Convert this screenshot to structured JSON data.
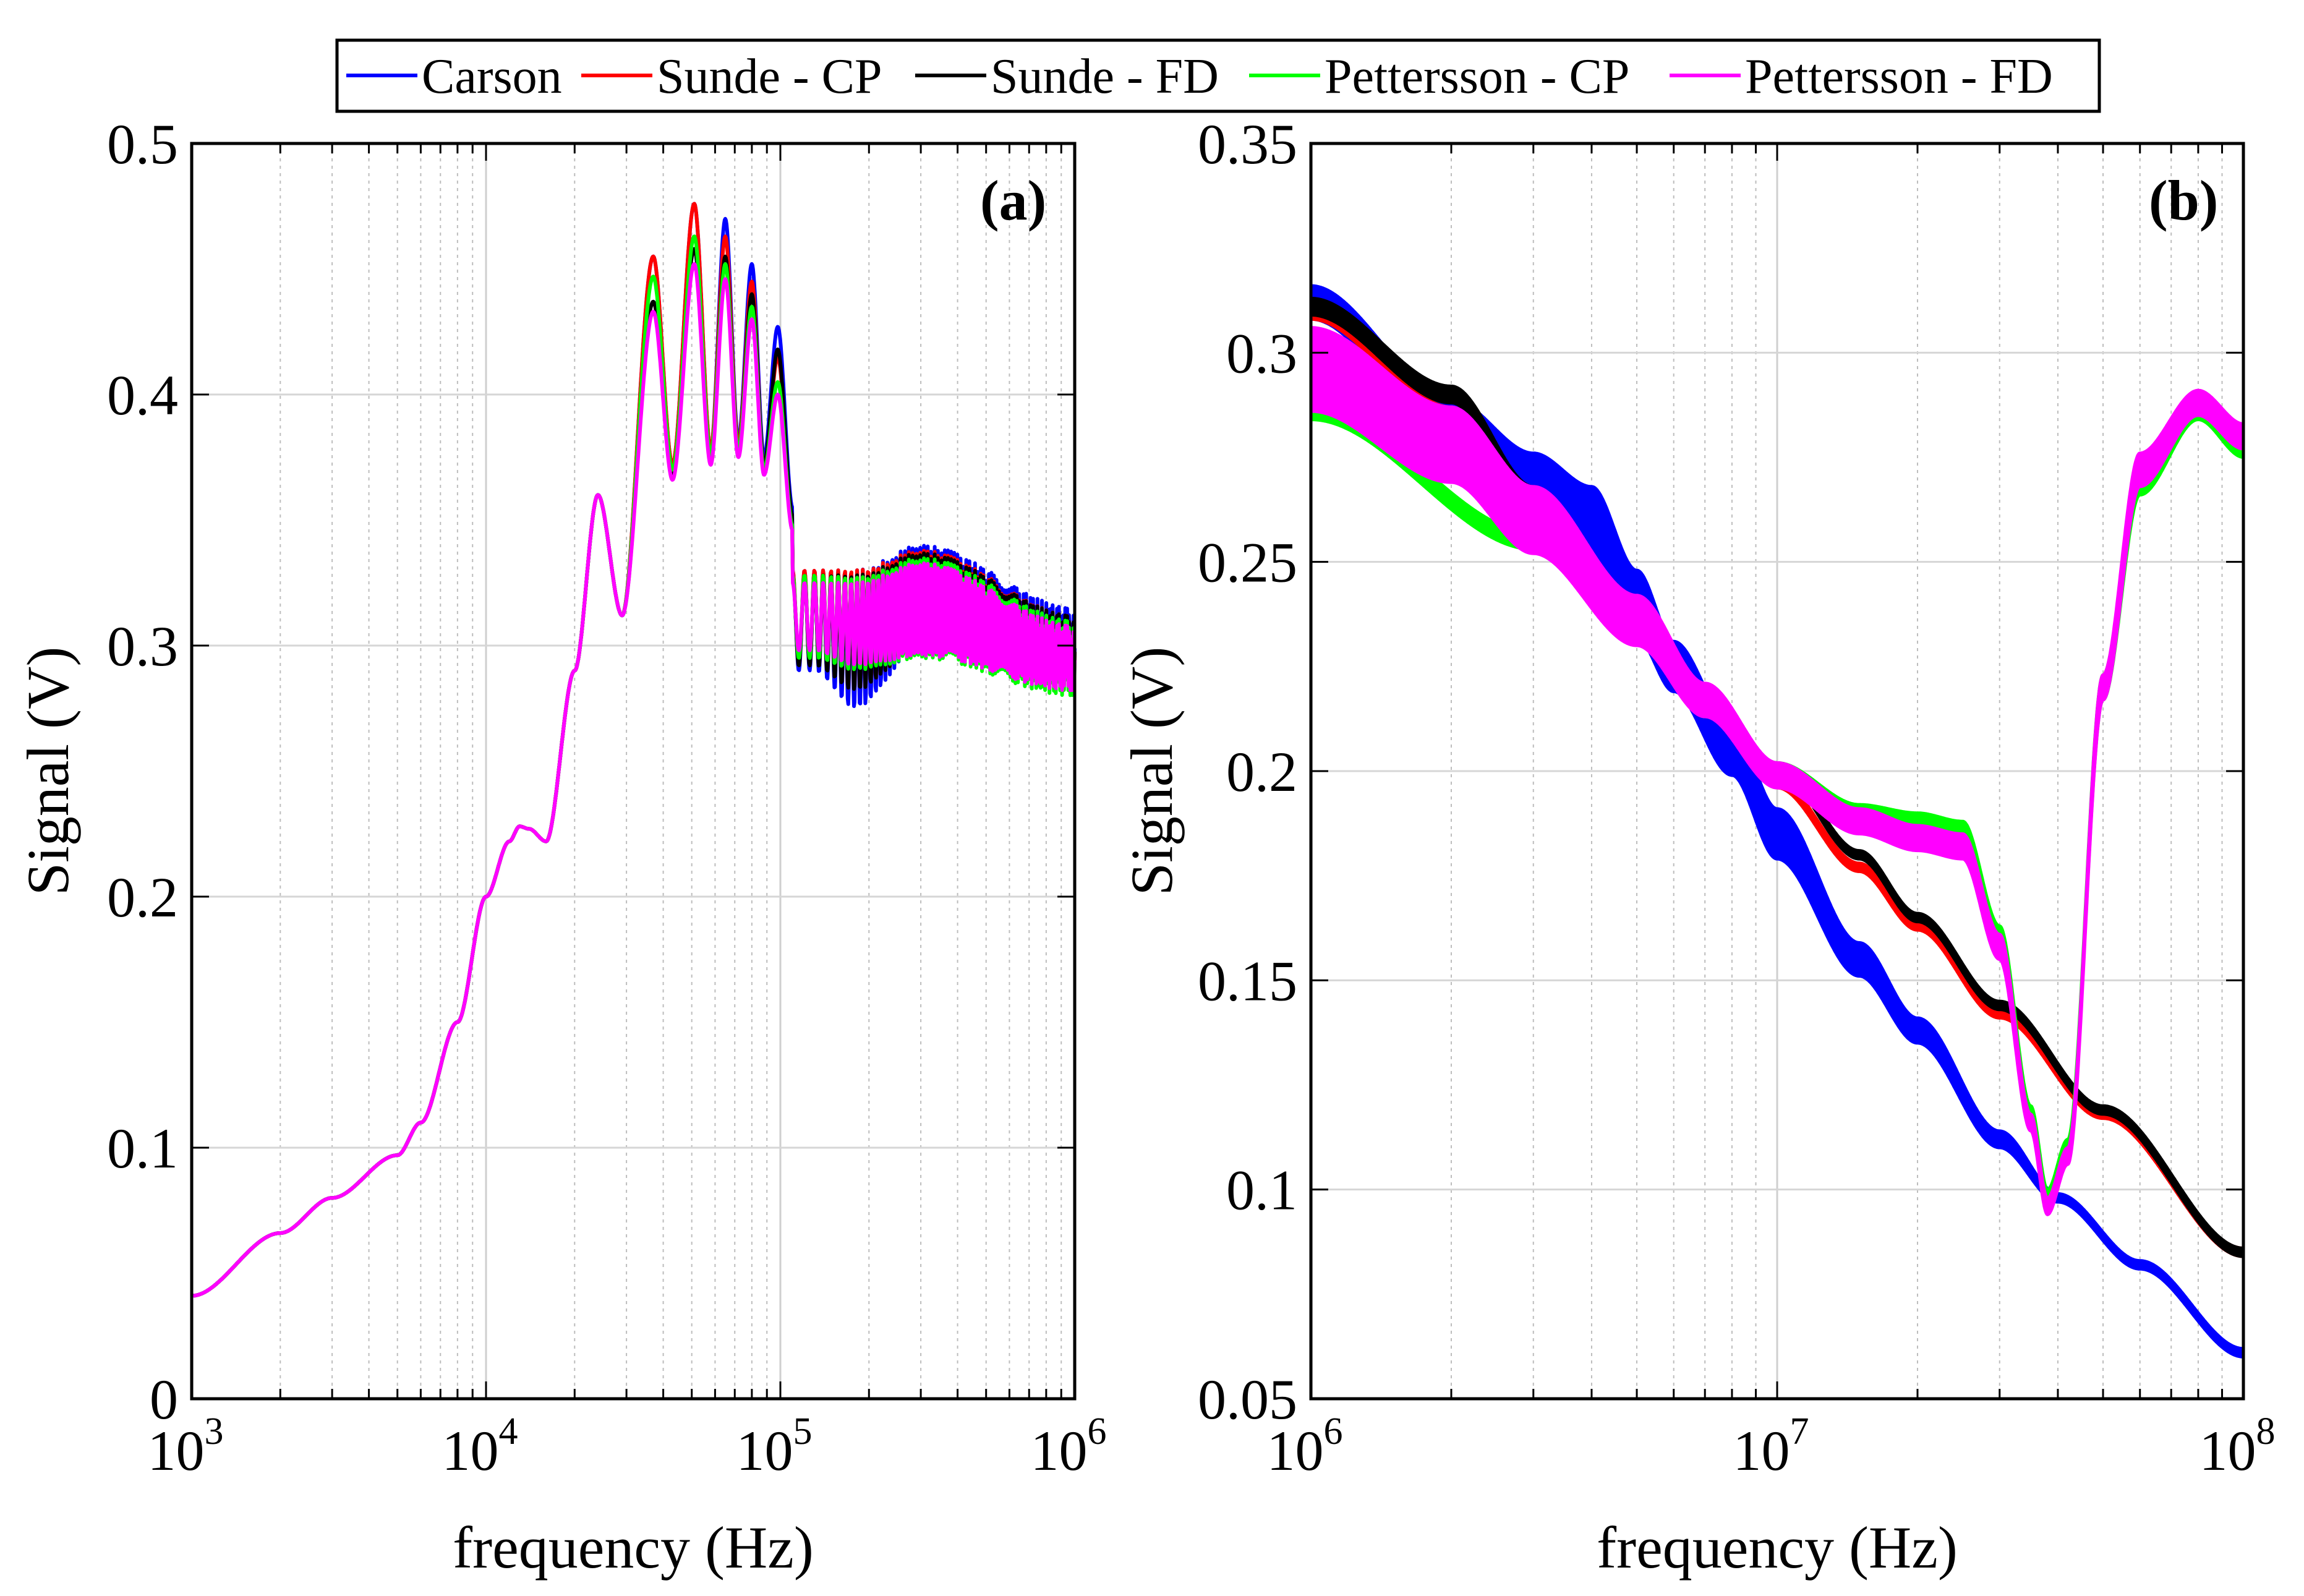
{
  "legend": {
    "entries": [
      {
        "label": "Carson",
        "color": "#0000ff"
      },
      {
        "label": "Sunde - CP",
        "color": "#ff0000"
      },
      {
        "label": "Sunde - FD",
        "color": "#000000"
      },
      {
        "label": "Pettersson - CP",
        "color": "#00ff00"
      },
      {
        "label": "Pettersson - FD",
        "color": "#ff00ff"
      }
    ]
  },
  "chart_data": [
    {
      "type": "line",
      "panel_label": "(a)",
      "xscale": "log",
      "xlim": [
        1000,
        1000000
      ],
      "ylim": [
        0,
        0.5
      ],
      "xlabel": "frequency (Hz)",
      "ylabel": "Signal (V)",
      "xticks": [
        {
          "base": "10",
          "exp": "3"
        },
        {
          "base": "10",
          "exp": "4"
        },
        {
          "base": "10",
          "exp": "5"
        },
        {
          "base": "10",
          "exp": "6"
        }
      ],
      "yticks": [
        "0",
        "0.1",
        "0.2",
        "0.3",
        "0.4",
        "0.5"
      ],
      "grid": true,
      "shared_curve": {
        "x": [
          1000,
          2000,
          3000,
          5000,
          6000,
          8000,
          10000,
          12000,
          13000,
          14000,
          16000,
          20000,
          24000,
          29000
        ],
        "y": [
          0.041,
          0.066,
          0.08,
          0.097,
          0.11,
          0.15,
          0.2,
          0.222,
          0.228,
          0.227,
          0.222,
          0.29,
          0.36,
          0.312
        ]
      },
      "series": [
        {
          "name": "Carson",
          "color": "#0000ff",
          "peaks_x": [
            37000,
            51000,
            65000,
            80000,
            98000
          ],
          "peaks_y": [
            0.455,
            0.476,
            0.47,
            0.452,
            0.427
          ],
          "troughs_x": [
            43000,
            58000,
            72000,
            88000,
            110000
          ],
          "troughs_y": [
            0.372,
            0.378,
            0.382,
            0.375,
            0.355
          ],
          "tail_x": [
            130000,
            180000,
            300000,
            1000000
          ],
          "tail_upper": [
            0.33,
            0.33,
            0.34,
            0.315
          ],
          "tail_lower": [
            0.29,
            0.275,
            0.3,
            0.285
          ]
        },
        {
          "name": "Sunde - CP",
          "color": "#ff0000",
          "peaks_x": [
            37000,
            51000,
            65000,
            80000,
            98000
          ],
          "peaks_y": [
            0.455,
            0.476,
            0.463,
            0.445,
            0.415
          ],
          "troughs_x": [
            43000,
            58000,
            72000,
            88000,
            110000
          ],
          "troughs_y": [
            0.372,
            0.378,
            0.38,
            0.372,
            0.35
          ],
          "tail_x": [
            130000,
            180000,
            300000,
            1000000
          ],
          "tail_upper": [
            0.33,
            0.33,
            0.338,
            0.312
          ],
          "tail_lower": [
            0.292,
            0.282,
            0.3,
            0.285
          ]
        },
        {
          "name": "Sunde - FD",
          "color": "#000000",
          "peaks_x": [
            37000,
            51000,
            65000,
            80000,
            98000
          ],
          "peaks_y": [
            0.437,
            0.458,
            0.455,
            0.44,
            0.418
          ],
          "troughs_x": [
            43000,
            58000,
            72000,
            88000,
            110000
          ],
          "troughs_y": [
            0.368,
            0.374,
            0.377,
            0.372,
            0.352
          ],
          "tail_x": [
            130000,
            180000,
            300000,
            1000000
          ],
          "tail_upper": [
            0.328,
            0.328,
            0.337,
            0.312
          ],
          "tail_lower": [
            0.292,
            0.282,
            0.3,
            0.285
          ]
        },
        {
          "name": "Pettersson - CP",
          "color": "#00ff00",
          "peaks_x": [
            37000,
            51000,
            65000,
            80000,
            98000
          ],
          "peaks_y": [
            0.447,
            0.463,
            0.452,
            0.435,
            0.405
          ],
          "troughs_x": [
            43000,
            58000,
            72000,
            88000,
            110000
          ],
          "troughs_y": [
            0.37,
            0.376,
            0.378,
            0.37,
            0.348
          ],
          "tail_x": [
            130000,
            180000,
            300000,
            1000000
          ],
          "tail_upper": [
            0.328,
            0.327,
            0.335,
            0.31
          ],
          "tail_lower": [
            0.295,
            0.29,
            0.295,
            0.28
          ]
        },
        {
          "name": "Pettersson - FD",
          "color": "#ff00ff",
          "peaks_x": [
            37000,
            51000,
            65000,
            80000,
            98000
          ],
          "peaks_y": [
            0.433,
            0.452,
            0.446,
            0.43,
            0.4
          ],
          "troughs_x": [
            43000,
            58000,
            72000,
            88000,
            110000
          ],
          "troughs_y": [
            0.366,
            0.372,
            0.375,
            0.368,
            0.346
          ],
          "tail_x": [
            130000,
            180000,
            300000,
            1000000
          ],
          "tail_upper": [
            0.325,
            0.325,
            0.333,
            0.308
          ],
          "tail_lower": [
            0.298,
            0.292,
            0.296,
            0.282
          ]
        }
      ]
    },
    {
      "type": "line",
      "panel_label": "(b)",
      "xscale": "log",
      "xlim": [
        1000000,
        100000000
      ],
      "ylim": [
        0.05,
        0.35
      ],
      "xlabel": "frequency (Hz)",
      "ylabel": "Signal (V)",
      "xticks": [
        {
          "base": "10",
          "exp": "6"
        },
        {
          "base": "10",
          "exp": "7"
        },
        {
          "base": "10",
          "exp": "8"
        }
      ],
      "yticks": [
        "0.05",
        "0.1",
        "0.15",
        "0.2",
        "0.25",
        "0.3",
        "0.35"
      ],
      "grid": true,
      "series": [
        {
          "name": "Carson",
          "color": "#0000ff",
          "x": [
            1000000,
            2000000,
            3000000,
            4000000,
            5000000,
            6000000,
            8000000,
            10000000,
            15000000,
            20000000,
            30000000,
            40000000,
            60000000,
            100000000
          ],
          "y": [
            0.312,
            0.285,
            0.27,
            0.258,
            0.24,
            0.225,
            0.205,
            0.185,
            0.155,
            0.138,
            0.112,
            0.098,
            0.082,
            0.061
          ],
          "band": [
            0.004,
            0.004,
            0.006,
            0.01,
            0.008,
            0.006,
            0.006,
            0.006,
            0.004,
            0.003,
            0.002,
            0.001,
            0.001,
            0.001
          ]
        },
        {
          "name": "Sunde - CP",
          "color": "#ff0000",
          "x": [
            1000000,
            2000000,
            3000000,
            5000000,
            7000000,
            10000000,
            15000000,
            20000000,
            30000000,
            50000000,
            100000000
          ],
          "y": [
            0.31,
            0.286,
            0.265,
            0.235,
            0.215,
            0.197,
            0.177,
            0.163,
            0.142,
            0.118,
            0.085
          ],
          "band": [
            0.002,
            0.001,
            0.001,
            0.001,
            0.001,
            0.001,
            0.001,
            0.001,
            0.001,
            0.001,
            0.001
          ]
        },
        {
          "name": "Sunde - FD",
          "color": "#000000",
          "x": [
            1000000,
            2000000,
            3000000,
            5000000,
            7000000,
            10000000,
            15000000,
            20000000,
            30000000,
            50000000,
            100000000
          ],
          "y": [
            0.311,
            0.29,
            0.266,
            0.238,
            0.219,
            0.201,
            0.18,
            0.165,
            0.144,
            0.119,
            0.085
          ],
          "band": [
            0.002,
            0.002,
            0.002,
            0.001,
            0.001,
            0.001,
            0.001,
            0.001,
            0.001,
            0.001,
            0.001
          ]
        },
        {
          "name": "Pettersson - CP",
          "color": "#00ff00",
          "x": [
            1000000,
            3000000,
            5000000,
            7000000,
            10000000,
            15000000,
            20000000,
            25000000,
            30000000,
            35000000,
            38000000,
            42000000,
            50000000,
            60000000,
            80000000,
            100000000
          ],
          "y": [
            0.286,
            0.255,
            0.235,
            0.215,
            0.2,
            0.19,
            0.188,
            0.186,
            0.16,
            0.118,
            0.098,
            0.11,
            0.22,
            0.27,
            0.287,
            0.278
          ],
          "band": [
            0.002,
            0.002,
            0.002,
            0.002,
            0.002,
            0.002,
            0.002,
            0.002,
            0.003,
            0.002,
            0.002,
            0.002,
            0.003,
            0.004,
            0.003,
            0.003
          ]
        },
        {
          "name": "Pettersson - FD",
          "color": "#ff00ff",
          "x": [
            1000000,
            2000000,
            3000000,
            5000000,
            7000000,
            10000000,
            15000000,
            20000000,
            25000000,
            30000000,
            35000000,
            38000000,
            42000000,
            50000000,
            60000000,
            80000000,
            100000000
          ],
          "y": [
            0.296,
            0.278,
            0.26,
            0.236,
            0.217,
            0.199,
            0.188,
            0.184,
            0.182,
            0.158,
            0.116,
            0.096,
            0.108,
            0.22,
            0.272,
            0.288,
            0.28
          ],
          "band": [
            0.01,
            0.009,
            0.008,
            0.006,
            0.004,
            0.003,
            0.003,
            0.003,
            0.003,
            0.003,
            0.002,
            0.002,
            0.002,
            0.003,
            0.004,
            0.003,
            0.003
          ]
        }
      ]
    }
  ]
}
